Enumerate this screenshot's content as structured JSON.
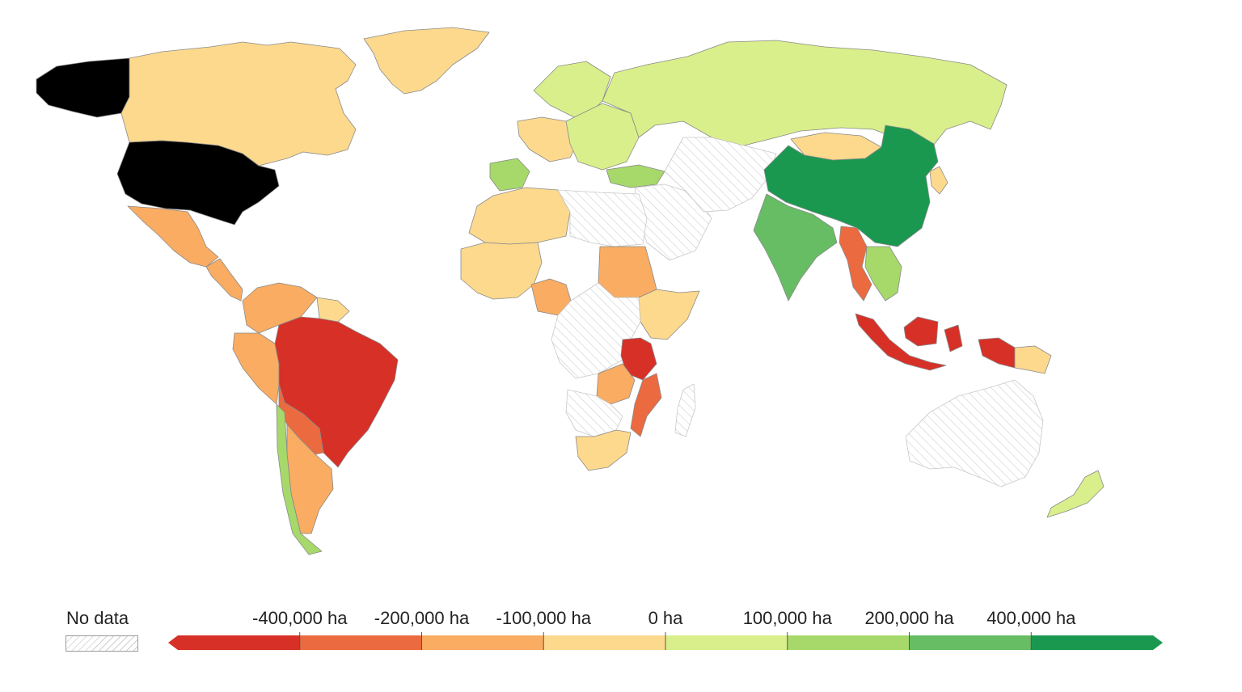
{
  "legend": {
    "no_data_label": "No data",
    "tick_labels": [
      "-400,000 ha",
      "-200,000 ha",
      "-100,000 ha",
      "0 ha",
      "100,000 ha",
      "200,000 ha",
      "400,000 ha"
    ],
    "bins": [
      {
        "color": "#d73027",
        "range": [
          null,
          -400000
        ]
      },
      {
        "color": "#ec6a3f",
        "range": [
          -400000,
          -200000
        ]
      },
      {
        "color": "#f9ac62",
        "range": [
          -200000,
          -100000
        ]
      },
      {
        "color": "#fdd98e",
        "range": [
          -100000,
          0
        ]
      },
      {
        "color": "#d9ef8b",
        "range": [
          0,
          100000
        ]
      },
      {
        "color": "#a6d96a",
        "range": [
          100000,
          200000
        ]
      },
      {
        "color": "#66bd63",
        "range": [
          200000,
          400000
        ]
      },
      {
        "color": "#1a9850",
        "range": [
          400000,
          null
        ]
      }
    ],
    "no_data_color": "hatched-gray"
  },
  "regions": [
    {
      "name": "canada",
      "bin": 3
    },
    {
      "name": "greenland",
      "bin": 3
    },
    {
      "name": "alaska",
      "bin": -1
    },
    {
      "name": "usa",
      "bin": -1
    },
    {
      "name": "mexico",
      "bin": 2
    },
    {
      "name": "central-america",
      "bin": 2
    },
    {
      "name": "colombia-venezuela",
      "bin": 2
    },
    {
      "name": "guianas",
      "bin": 3
    },
    {
      "name": "peru",
      "bin": 2
    },
    {
      "name": "brazil",
      "bin": 0
    },
    {
      "name": "bolivia-paraguay",
      "bin": 1
    },
    {
      "name": "chile",
      "bin": 5
    },
    {
      "name": "argentina",
      "bin": 2
    },
    {
      "name": "northern-europe",
      "bin": 4
    },
    {
      "name": "western-europe",
      "bin": 3
    },
    {
      "name": "spain",
      "bin": 5
    },
    {
      "name": "eastern-europe",
      "bin": 4
    },
    {
      "name": "russia",
      "bin": 4
    },
    {
      "name": "turkey",
      "bin": 5
    },
    {
      "name": "middle-east",
      "bin": -1
    },
    {
      "name": "central-asia",
      "bin": -1
    },
    {
      "name": "mongolia",
      "bin": 3
    },
    {
      "name": "china",
      "bin": 7
    },
    {
      "name": "india",
      "bin": 6
    },
    {
      "name": "myanmar",
      "bin": 1
    },
    {
      "name": "indochina",
      "bin": 5
    },
    {
      "name": "korea-japan",
      "bin": 3
    },
    {
      "name": "indonesia",
      "bin": 0
    },
    {
      "name": "papua-new-guinea",
      "bin": 3
    },
    {
      "name": "australia",
      "bin": -1
    },
    {
      "name": "new-zealand",
      "bin": 4
    },
    {
      "name": "north-africa",
      "bin": 3
    },
    {
      "name": "libya-egypt",
      "bin": -1
    },
    {
      "name": "west-africa",
      "bin": 3
    },
    {
      "name": "nigeria",
      "bin": 2
    },
    {
      "name": "sudan",
      "bin": 2
    },
    {
      "name": "horn-of-africa",
      "bin": 3
    },
    {
      "name": "central-africa",
      "bin": -1
    },
    {
      "name": "tanzania",
      "bin": 0
    },
    {
      "name": "zambia",
      "bin": 2
    },
    {
      "name": "mozambique",
      "bin": 1
    },
    {
      "name": "southern-africa",
      "bin": 3
    },
    {
      "name": "namibia-botswana",
      "bin": -1
    },
    {
      "name": "madagascar",
      "bin": -1
    }
  ]
}
